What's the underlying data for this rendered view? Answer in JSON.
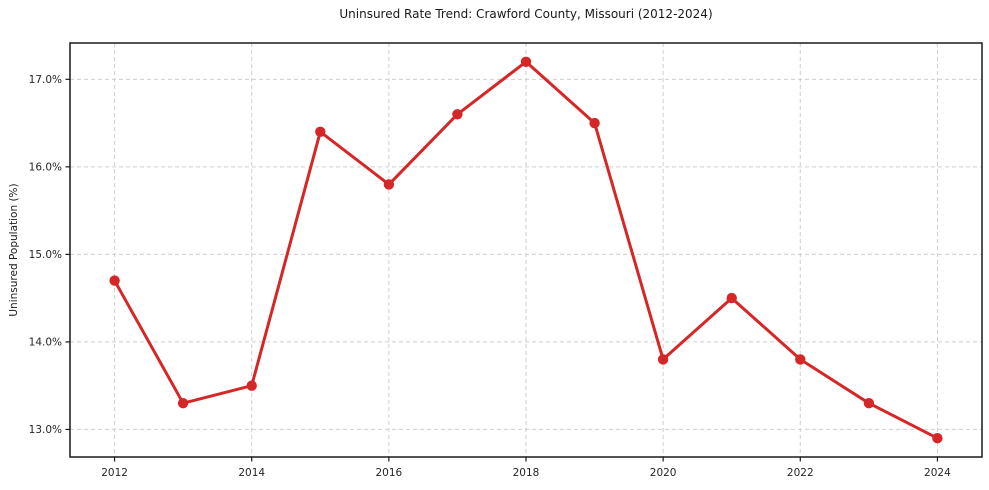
{
  "chart_data": {
    "type": "line",
    "title": "Uninsured Rate Trend: Crawford County, Missouri (2012-2024)",
    "xlabel": "",
    "ylabel": "Uninsured Population (%)",
    "x": [
      2012,
      2013,
      2014,
      2015,
      2016,
      2017,
      2018,
      2019,
      2020,
      2021,
      2022,
      2023,
      2024
    ],
    "values": [
      14.7,
      13.3,
      13.5,
      16.4,
      15.8,
      16.6,
      17.2,
      16.5,
      13.8,
      14.5,
      13.8,
      13.3,
      12.9
    ],
    "x_tick_values": [
      2012,
      2014,
      2016,
      2018,
      2020,
      2022,
      2024
    ],
    "x_tick_labels": [
      "2012",
      "2014",
      "2016",
      "2018",
      "2020",
      "2022",
      "2024"
    ],
    "y_tick_values": [
      13.0,
      14.0,
      15.0,
      16.0,
      17.0
    ],
    "y_tick_labels": [
      "13.0%",
      "14.0%",
      "15.0%",
      "16.0%",
      "17.0%"
    ],
    "xlim": [
      2011.35,
      2024.65
    ],
    "ylim": [
      12.685,
      17.415
    ],
    "grid": true,
    "legend": false,
    "line_color": "#d62728",
    "grid_color": "#cfcfcf",
    "axis_color": "#1a1a1a",
    "tick_label_color": "#262626",
    "background_color": "#ffffff"
  }
}
